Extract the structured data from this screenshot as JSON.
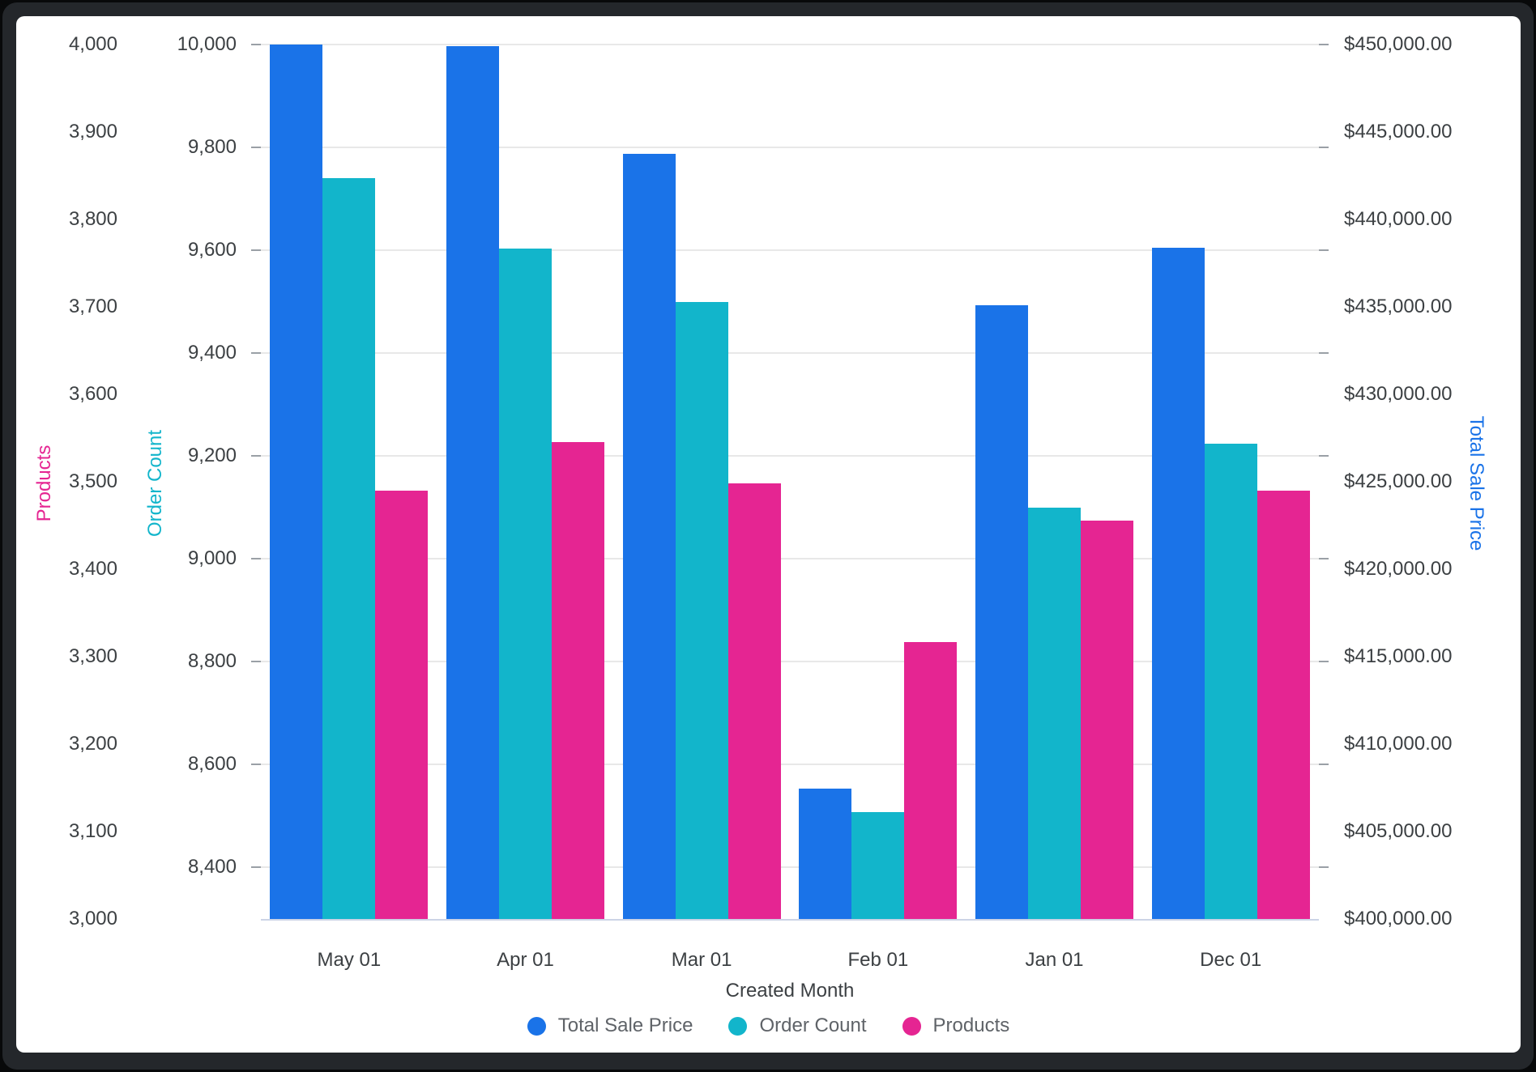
{
  "frame": {
    "background": "#24272b",
    "card_background": "#ffffff",
    "gridline_color": "#e8e8e8",
    "baseline_color": "#ccd4e6",
    "tick_text_color": "#3c4043",
    "legend_text_color": "#5f6368"
  },
  "chart_data": {
    "type": "bar",
    "title": "",
    "xlabel": "Created Month",
    "categories": [
      "May 01",
      "Apr 01",
      "Mar 01",
      "Feb 01",
      "Jan 01",
      "Dec 01"
    ],
    "legend_position": "bottom-center",
    "grid": "horizontal, aligned to Order Count ticks",
    "series": [
      {
        "name": "Total Sale Price",
        "color": "#1A73E8",
        "axis": "price",
        "values": [
          450000,
          449900,
          443750,
          407450,
          435100,
          438400
        ]
      },
      {
        "name": "Order Count",
        "color": "#12B5CB",
        "axis": "order",
        "values": [
          9740,
          9604,
          9500,
          8508,
          9100,
          9224
        ]
      },
      {
        "name": "Products",
        "color": "#E52592",
        "axis": "products",
        "values": [
          3490,
          3545,
          3498,
          3317,
          3456,
          3490
        ]
      }
    ],
    "axes": {
      "products": {
        "title": "Products",
        "color": "#E52592",
        "side": "far-left",
        "min": 3000,
        "max": 4000,
        "tick_labels": [
          "4,000",
          "3,900",
          "3,800",
          "3,700",
          "3,600",
          "3,500",
          "3,400",
          "3,300",
          "3,200",
          "3,100",
          "3,000"
        ],
        "tick_values": [
          4000,
          3900,
          3800,
          3700,
          3600,
          3500,
          3400,
          3300,
          3200,
          3100,
          3000
        ]
      },
      "order": {
        "title": "Order Count",
        "color": "#12B5CB",
        "side": "left",
        "min": 8300,
        "max": 10000,
        "tick_labels": [
          "10,000",
          "9,800",
          "9,600",
          "9,400",
          "9,200",
          "9,000",
          "8,800",
          "8,600",
          "8,400"
        ],
        "tick_values": [
          10000,
          9800,
          9600,
          9400,
          9200,
          9000,
          8800,
          8600,
          8400
        ]
      },
      "price": {
        "title": "Total Sale Price",
        "color": "#1A73E8",
        "side": "right",
        "min": 400000,
        "max": 450000,
        "tick_labels": [
          "$450,000.00",
          "$445,000.00",
          "$440,000.00",
          "$435,000.00",
          "$430,000.00",
          "$425,000.00",
          "$420,000.00",
          "$415,000.00",
          "$410,000.00",
          "$405,000.00",
          "$400,000.00"
        ],
        "tick_values": [
          450000,
          445000,
          440000,
          435000,
          430000,
          425000,
          420000,
          415000,
          410000,
          405000,
          400000
        ]
      }
    }
  }
}
